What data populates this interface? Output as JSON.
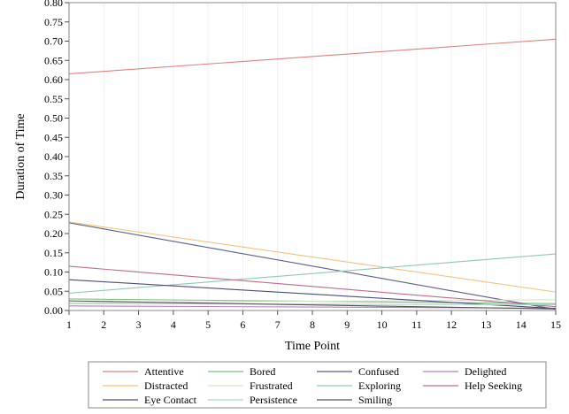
{
  "chart_data": {
    "type": "line",
    "xlabel": "Time Point",
    "ylabel": "Duration of Time",
    "xlim": [
      1,
      15
    ],
    "ylim": [
      0,
      0.8
    ],
    "x_ticks": [
      1,
      2,
      3,
      4,
      5,
      6,
      7,
      8,
      9,
      10,
      11,
      12,
      13,
      14,
      15
    ],
    "y_ticks": [
      "0.00",
      "0.05",
      "0.10",
      "0.15",
      "0.20",
      "0.25",
      "0.30",
      "0.35",
      "0.40",
      "0.45",
      "0.50",
      "0.55",
      "0.60",
      "0.65",
      "0.70",
      "0.75",
      "0.80"
    ],
    "grid": "vertical",
    "legend_position": "bottom",
    "series": [
      {
        "name": "Attentive",
        "color": "#e0817c",
        "x": [
          1,
          15
        ],
        "values": [
          0.615,
          0.705
        ]
      },
      {
        "name": "Bored",
        "color": "#7fbf7f",
        "x": [
          1,
          15
        ],
        "values": [
          0.03,
          0.018
        ]
      },
      {
        "name": "Confused",
        "color": "#5a5f8c",
        "x": [
          1,
          15
        ],
        "values": [
          0.228,
          0.003
        ]
      },
      {
        "name": "Delighted",
        "color": "#b87fc0",
        "x": [
          1,
          15
        ],
        "values": [
          0.012,
          0.006
        ]
      },
      {
        "name": "Distracted",
        "color": "#f3c27a",
        "x": [
          1,
          15
        ],
        "values": [
          0.23,
          0.048
        ]
      },
      {
        "name": "Frustrated",
        "color": "#d3e7c3",
        "x": [
          1,
          15
        ],
        "values": [
          0.02,
          0.028
        ]
      },
      {
        "name": "Exploring",
        "color": "#8dc9b8",
        "x": [
          1,
          15
        ],
        "values": [
          0.045,
          0.147
        ]
      },
      {
        "name": "Help Seeking",
        "color": "#c26a8a",
        "x": [
          1,
          15
        ],
        "values": [
          0.115,
          0.01
        ]
      },
      {
        "name": "Eye Contact",
        "color": "#4a4e7a",
        "x": [
          1,
          15
        ],
        "values": [
          0.08,
          0.005
        ]
      },
      {
        "name": "Persistence",
        "color": "#a9d6c5",
        "x": [
          1,
          15
        ],
        "values": [
          0.018,
          0.015
        ]
      },
      {
        "name": "Smiling",
        "color": "#555555",
        "x": [
          1,
          15
        ],
        "values": [
          0.025,
          0.004
        ]
      }
    ]
  }
}
